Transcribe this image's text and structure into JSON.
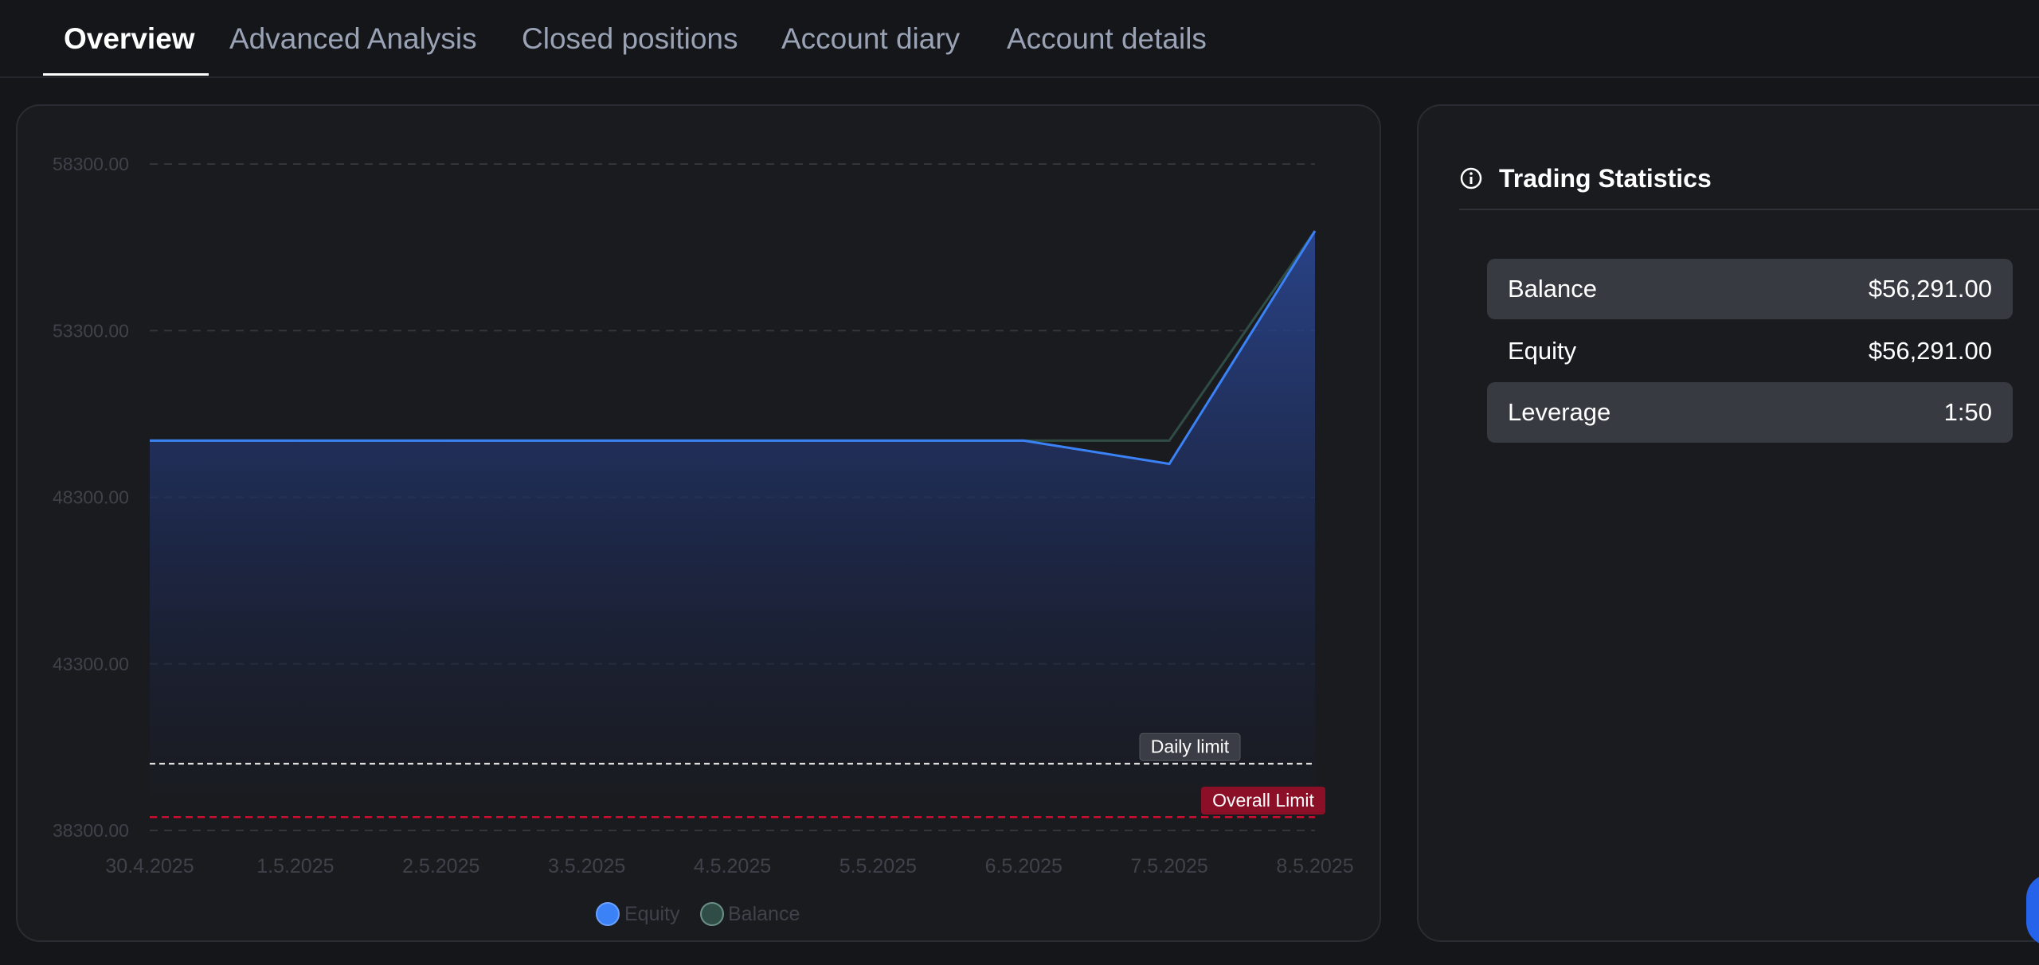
{
  "tabs": [
    {
      "label": "Overview",
      "active": true
    },
    {
      "label": "Advanced Analysis",
      "active": false
    },
    {
      "label": "Closed positions",
      "active": false
    },
    {
      "label": "Account diary",
      "active": false
    },
    {
      "label": "Account details",
      "active": false
    }
  ],
  "stats": {
    "title": "Trading Statistics",
    "icon": "info-icon",
    "rows": [
      {
        "label": "Balance",
        "value": "$56,291.00"
      },
      {
        "label": "Equity",
        "value": "$56,291.00"
      },
      {
        "label": "Leverage",
        "value": "1:50"
      }
    ]
  },
  "chart_data": {
    "type": "area",
    "categories": [
      "30.4.2025",
      "1.5.2025",
      "2.5.2025",
      "3.5.2025",
      "4.5.2025",
      "5.5.2025",
      "6.5.2025",
      "7.5.2025",
      "8.5.2025"
    ],
    "y_ticks": [
      "58300.00",
      "53300.00",
      "48300.00",
      "43300.00",
      "38300.00"
    ],
    "ylim": [
      38300,
      58300
    ],
    "grid": true,
    "legend_position": "bottom-center",
    "series": [
      {
        "name": "Equity",
        "color": "#3b82f6",
        "values": [
          50000,
          50000,
          50000,
          50000,
          50000,
          50000,
          50000,
          49300,
          56291
        ]
      },
      {
        "name": "Balance",
        "color": "#2f4d45",
        "values": [
          50000,
          50000,
          50000,
          50000,
          50000,
          50000,
          50000,
          50000,
          56291
        ]
      }
    ],
    "limits": [
      {
        "label": "Daily limit",
        "value": 40300,
        "color": "#ffffff"
      },
      {
        "label": "Overall Limit",
        "value": 38700,
        "color": "#c8102e"
      }
    ]
  },
  "colors": {
    "background": "#15161a",
    "card": "#1a1b1f",
    "accent": "#2563eb"
  }
}
